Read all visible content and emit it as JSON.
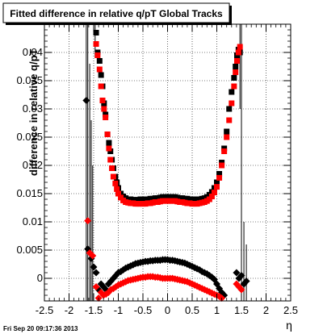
{
  "chart_data": {
    "type": "scatter",
    "title": "Fitted difference in relative q/pT  Global Tracks",
    "xlabel": "η",
    "ylabel": "difference in relative q/pT",
    "xlim": [
      -2.5,
      2.5
    ],
    "ylim": [
      -0.004,
      0.045
    ],
    "x_ticks": [
      "-2.5",
      "-2",
      "-1.5",
      "-1",
      "-0.5",
      "0",
      "0.5",
      "1",
      "1.5",
      "2",
      "2.5"
    ],
    "y_ticks": [
      "0",
      "0.005",
      "0.01",
      "0.015",
      "0.02",
      "0.025",
      "0.03",
      "0.035",
      "0.04"
    ],
    "grid": true,
    "series": [
      {
        "marker": "square",
        "color": "#000000",
        "points": [
          [
            -1.45,
            0.0435
          ],
          [
            -1.42,
            0.04
          ],
          [
            -1.38,
            0.0385
          ],
          [
            -1.35,
            0.036
          ],
          [
            -1.32,
            0.034
          ],
          [
            -1.29,
            0.031
          ],
          [
            -1.26,
            0.029
          ],
          [
            -1.22,
            0.0255
          ],
          [
            -1.19,
            0.024
          ],
          [
            -1.16,
            0.0225
          ],
          [
            -1.13,
            0.021
          ],
          [
            -1.1,
            0.0195
          ],
          [
            -1.06,
            0.018
          ],
          [
            -1.03,
            0.017
          ],
          [
            -1.0,
            0.016
          ],
          [
            -0.95,
            0.015
          ],
          [
            -0.9,
            0.0145
          ],
          [
            -0.85,
            0.0142
          ],
          [
            -0.8,
            0.014
          ],
          [
            -0.75,
            0.014
          ],
          [
            -0.7,
            0.0139
          ],
          [
            -0.65,
            0.0139
          ],
          [
            -0.6,
            0.0139
          ],
          [
            -0.55,
            0.014
          ],
          [
            -0.5,
            0.014
          ],
          [
            -0.45,
            0.014
          ],
          [
            -0.4,
            0.014
          ],
          [
            -0.35,
            0.0141
          ],
          [
            -0.3,
            0.0141
          ],
          [
            -0.25,
            0.0142
          ],
          [
            -0.2,
            0.0142
          ],
          [
            -0.15,
            0.0143
          ],
          [
            -0.1,
            0.0144
          ],
          [
            -0.05,
            0.0144
          ],
          [
            0.0,
            0.0144
          ],
          [
            0.05,
            0.0144
          ],
          [
            0.1,
            0.0144
          ],
          [
            0.15,
            0.0144
          ],
          [
            0.2,
            0.0143
          ],
          [
            0.25,
            0.0142
          ],
          [
            0.3,
            0.0142
          ],
          [
            0.35,
            0.0141
          ],
          [
            0.4,
            0.0141
          ],
          [
            0.45,
            0.014
          ],
          [
            0.5,
            0.014
          ],
          [
            0.55,
            0.014
          ],
          [
            0.6,
            0.014
          ],
          [
            0.65,
            0.014
          ],
          [
            0.7,
            0.0141
          ],
          [
            0.75,
            0.0142
          ],
          [
            0.8,
            0.0144
          ],
          [
            0.85,
            0.0148
          ],
          [
            0.9,
            0.0153
          ],
          [
            0.95,
            0.016
          ],
          [
            1.0,
            0.017
          ],
          [
            1.05,
            0.0185
          ],
          [
            1.1,
            0.0205
          ],
          [
            1.15,
            0.023
          ],
          [
            1.2,
            0.026
          ],
          [
            1.25,
            0.03
          ],
          [
            1.3,
            0.033
          ],
          [
            1.35,
            0.0355
          ],
          [
            1.38,
            0.0375
          ],
          [
            1.41,
            0.0395
          ],
          [
            1.44,
            0.0405
          ],
          [
            1.47,
            0.04
          ]
        ]
      },
      {
        "marker": "square",
        "color": "#ff0000",
        "points": [
          [
            -1.45,
            0.0415
          ],
          [
            -1.42,
            0.0395
          ],
          [
            -1.38,
            0.037
          ],
          [
            -1.35,
            0.034
          ],
          [
            -1.32,
            0.0315
          ],
          [
            -1.29,
            0.03
          ],
          [
            -1.26,
            0.0285
          ],
          [
            -1.22,
            0.0255
          ],
          [
            -1.19,
            0.023
          ],
          [
            -1.16,
            0.021
          ],
          [
            -1.13,
            0.0195
          ],
          [
            -1.1,
            0.018
          ],
          [
            -1.06,
            0.0168
          ],
          [
            -1.03,
            0.0158
          ],
          [
            -1.0,
            0.015
          ],
          [
            -0.95,
            0.0143
          ],
          [
            -0.9,
            0.0138
          ],
          [
            -0.85,
            0.0135
          ],
          [
            -0.8,
            0.0134
          ],
          [
            -0.75,
            0.0133
          ],
          [
            -0.7,
            0.0133
          ],
          [
            -0.65,
            0.0132
          ],
          [
            -0.6,
            0.0132
          ],
          [
            -0.55,
            0.0132
          ],
          [
            -0.5,
            0.0132
          ],
          [
            -0.45,
            0.0132
          ],
          [
            -0.4,
            0.0133
          ],
          [
            -0.35,
            0.0133
          ],
          [
            -0.3,
            0.0134
          ],
          [
            -0.25,
            0.0135
          ],
          [
            -0.2,
            0.0135
          ],
          [
            -0.15,
            0.0136
          ],
          [
            -0.1,
            0.0137
          ],
          [
            -0.05,
            0.0137
          ],
          [
            0.0,
            0.0137
          ],
          [
            0.05,
            0.0137
          ],
          [
            0.1,
            0.0137
          ],
          [
            0.15,
            0.0137
          ],
          [
            0.2,
            0.0136
          ],
          [
            0.25,
            0.0135
          ],
          [
            0.3,
            0.0135
          ],
          [
            0.35,
            0.0134
          ],
          [
            0.4,
            0.0133
          ],
          [
            0.45,
            0.0133
          ],
          [
            0.5,
            0.0132
          ],
          [
            0.55,
            0.0132
          ],
          [
            0.6,
            0.0132
          ],
          [
            0.65,
            0.0133
          ],
          [
            0.7,
            0.0134
          ],
          [
            0.75,
            0.0135
          ],
          [
            0.8,
            0.0137
          ],
          [
            0.85,
            0.014
          ],
          [
            0.9,
            0.0145
          ],
          [
            0.95,
            0.0152
          ],
          [
            1.0,
            0.0162
          ],
          [
            1.05,
            0.0178
          ],
          [
            1.1,
            0.02
          ],
          [
            1.15,
            0.0225
          ],
          [
            1.2,
            0.025
          ],
          [
            1.25,
            0.028
          ],
          [
            1.3,
            0.031
          ],
          [
            1.35,
            0.034
          ],
          [
            1.38,
            0.0365
          ],
          [
            1.41,
            0.0385
          ],
          [
            1.44,
            0.04
          ],
          [
            1.47,
            0.041
          ]
        ]
      },
      {
        "marker": "circle",
        "color": "#000000",
        "points": [
          [
            -1.65,
            0.0315
          ],
          [
            -1.62,
            0.0052
          ],
          [
            -1.55,
            0.0035
          ],
          [
            -1.5,
            0.002
          ],
          [
            -1.45,
            0.001
          ],
          [
            -1.4,
            -0.002
          ],
          [
            -1.35,
            -0.001
          ],
          [
            -1.3,
            -0.0015
          ],
          [
            -1.25,
            -0.002
          ],
          [
            -1.2,
            -0.001
          ],
          [
            -1.15,
            -0.0005
          ],
          [
            -1.1,
            0.0
          ],
          [
            -1.05,
            0.0005
          ],
          [
            -1.0,
            0.001
          ],
          [
            -0.95,
            0.0012
          ],
          [
            -0.9,
            0.0015
          ],
          [
            -0.85,
            0.0018
          ],
          [
            -0.8,
            0.002
          ],
          [
            -0.75,
            0.0022
          ],
          [
            -0.7,
            0.0024
          ],
          [
            -0.65,
            0.0026
          ],
          [
            -0.6,
            0.0027
          ],
          [
            -0.55,
            0.0028
          ],
          [
            -0.5,
            0.0029
          ],
          [
            -0.45,
            0.003
          ],
          [
            -0.4,
            0.003
          ],
          [
            -0.35,
            0.0031
          ],
          [
            -0.3,
            0.0031
          ],
          [
            -0.25,
            0.0032
          ],
          [
            -0.2,
            0.0032
          ],
          [
            -0.15,
            0.0032
          ],
          [
            -0.1,
            0.0033
          ],
          [
            -0.05,
            0.0033
          ],
          [
            0.0,
            0.0033
          ],
          [
            0.05,
            0.0032
          ],
          [
            0.1,
            0.0032
          ],
          [
            0.15,
            0.0031
          ],
          [
            0.2,
            0.003
          ],
          [
            0.25,
            0.0029
          ],
          [
            0.3,
            0.0028
          ],
          [
            0.35,
            0.0027
          ],
          [
            0.4,
            0.0025
          ],
          [
            0.45,
            0.0023
          ],
          [
            0.5,
            0.0021
          ],
          [
            0.55,
            0.0019
          ],
          [
            0.6,
            0.0017
          ],
          [
            0.65,
            0.0015
          ],
          [
            0.7,
            0.0012
          ],
          [
            0.75,
            0.001
          ],
          [
            0.8,
            0.0008
          ],
          [
            0.85,
            0.0005
          ],
          [
            0.9,
            0.0002
          ],
          [
            0.95,
            -0.0002
          ],
          [
            1.0,
            -0.001
          ],
          [
            1.05,
            -0.0018
          ],
          [
            1.1,
            -0.0025
          ],
          [
            1.15,
            -0.003
          ],
          [
            1.4,
            0.001
          ],
          [
            1.45,
            0.0
          ],
          [
            1.5,
            0.0005
          ],
          [
            1.55,
            -0.001
          ],
          [
            1.6,
            -0.0005
          ]
        ]
      },
      {
        "marker": "circle",
        "color": "#ff0000",
        "points": [
          [
            -1.62,
            0.0102
          ],
          [
            -1.58,
            0.0045
          ],
          [
            -1.52,
            0.004
          ],
          [
            -1.45,
            -0.0015
          ],
          [
            -1.4,
            -0.0035
          ],
          [
            -1.35,
            -0.0025
          ],
          [
            -1.3,
            -0.003
          ],
          [
            -1.25,
            -0.0028
          ],
          [
            -1.2,
            -0.0025
          ],
          [
            -1.15,
            -0.002
          ],
          [
            -1.1,
            -0.0018
          ],
          [
            -1.05,
            -0.0015
          ],
          [
            -1.0,
            -0.0012
          ],
          [
            -0.95,
            -0.001
          ],
          [
            -0.9,
            -0.0008
          ],
          [
            -0.85,
            -0.0006
          ],
          [
            -0.8,
            -0.0004
          ],
          [
            -0.75,
            -0.0003
          ],
          [
            -0.7,
            -0.0002
          ],
          [
            -0.65,
            -0.0001
          ],
          [
            -0.6,
            0.0
          ],
          [
            -0.55,
            0.0001
          ],
          [
            -0.5,
            0.0002
          ],
          [
            -0.45,
            0.0002
          ],
          [
            -0.4,
            0.0003
          ],
          [
            -0.35,
            0.0003
          ],
          [
            -0.3,
            0.0003
          ],
          [
            -0.25,
            0.0002
          ],
          [
            -0.2,
            0.0002
          ],
          [
            -0.15,
            0.0001
          ],
          [
            -0.1,
            0.0
          ],
          [
            -0.05,
            0.0
          ],
          [
            0.0,
            0.0
          ],
          [
            0.05,
            0.0
          ],
          [
            0.1,
            0.0
          ],
          [
            0.15,
            -0.0001
          ],
          [
            0.2,
            -0.0002
          ],
          [
            0.25,
            -0.0003
          ],
          [
            0.3,
            -0.0004
          ],
          [
            0.35,
            -0.0005
          ],
          [
            0.4,
            -0.0006
          ],
          [
            0.45,
            -0.0008
          ],
          [
            0.5,
            -0.001
          ],
          [
            0.55,
            -0.0012
          ],
          [
            0.6,
            -0.0014
          ],
          [
            0.65,
            -0.0016
          ],
          [
            0.7,
            -0.0018
          ],
          [
            0.75,
            -0.002
          ],
          [
            0.8,
            -0.0022
          ],
          [
            0.85,
            -0.0024
          ],
          [
            0.9,
            -0.0026
          ],
          [
            0.95,
            -0.0028
          ],
          [
            1.0,
            -0.003
          ],
          [
            1.05,
            -0.0032
          ],
          [
            1.1,
            -0.0035
          ],
          [
            1.4,
            -0.001
          ],
          [
            1.45,
            -0.0015
          ],
          [
            1.5,
            -0.002
          ]
        ]
      }
    ],
    "error_bars": [
      {
        "x": -1.65,
        "low": -0.004,
        "high": 0.045
      },
      {
        "x": -1.62,
        "low": -0.004,
        "high": 0.045
      },
      {
        "x": -1.58,
        "low": -0.004,
        "high": 0.038
      },
      {
        "x": -1.55,
        "low": -0.004,
        "high": 0.028
      },
      {
        "x": -1.52,
        "low": -0.004,
        "high": 0.02
      },
      {
        "x": -1.47,
        "low": 0.039,
        "high": 0.045
      },
      {
        "x": 1.47,
        "low": 0.03,
        "high": 0.045
      },
      {
        "x": 1.5,
        "low": -0.004,
        "high": 0.045
      },
      {
        "x": 1.55,
        "low": -0.004,
        "high": 0.01
      },
      {
        "x": 1.6,
        "low": -0.004,
        "high": 0.006
      }
    ]
  },
  "footer": {
    "timestamp": "Fri Sep 20 09:17:36 2013"
  }
}
